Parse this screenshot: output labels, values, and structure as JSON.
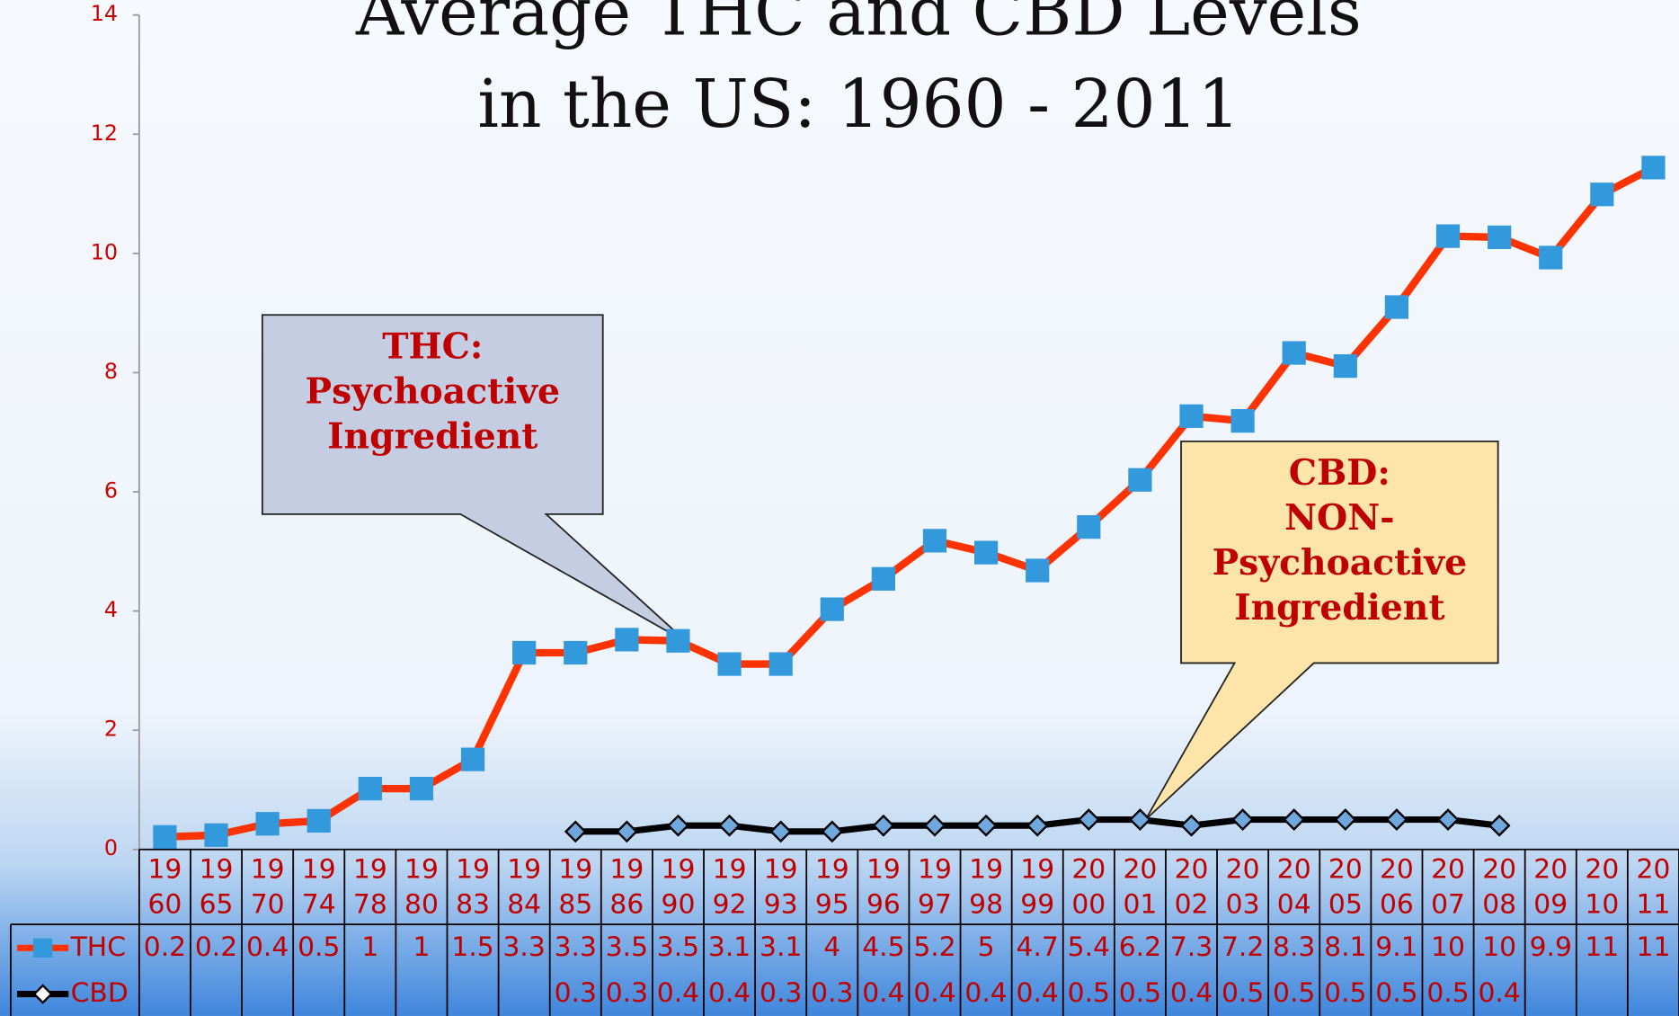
{
  "chart_data": {
    "type": "line",
    "title": [
      "Average THC and CBD Levels",
      "in the US: 1960 - 2011"
    ],
    "annotations": [
      {
        "lines": [
          "THC:",
          "Psychoactive",
          "Ingredient"
        ]
      },
      {
        "lines": [
          "CBD:",
          "NON-",
          "Psychoactive",
          "Ingredient"
        ]
      }
    ],
    "categories": [
      "1960",
      "1965",
      "1970",
      "1974",
      "1978",
      "1980",
      "1983",
      "1984",
      "1985",
      "1986",
      "1990",
      "1992",
      "1993",
      "1995",
      "1996",
      "1997",
      "1998",
      "1999",
      "2000",
      "2001",
      "2002",
      "2003",
      "2004",
      "2005",
      "2006",
      "2007",
      "2008",
      "2009",
      "2010",
      "2011"
    ],
    "series": [
      {
        "name": "THC",
        "color": "#ff3300",
        "marker_color": "#3399dd",
        "marker": "square",
        "values": [
          0.21,
          0.24,
          0.43,
          0.48,
          1.02,
          1.02,
          1.51,
          3.3,
          3.3,
          3.52,
          3.5,
          3.11,
          3.11,
          4.03,
          4.54,
          5.18,
          4.98,
          4.68,
          5.41,
          6.2,
          7.27,
          7.19,
          8.33,
          8.11,
          9.1,
          10.29,
          10.27,
          9.93,
          10.99,
          11.44
        ],
        "value_labels": [
          "0.2",
          "0.2",
          "0.4",
          "0.5",
          "1",
          "1",
          "1.5",
          "3.3",
          "3.3",
          "3.5",
          "3.5",
          "3.1",
          "3.1",
          "4",
          "4.5",
          "5.2",
          "5",
          "4.7",
          "5.4",
          "6.2",
          "7.3",
          "7.2",
          "8.3",
          "8.1",
          "9.1",
          "10",
          "10",
          "9.9",
          "11",
          "11"
        ]
      },
      {
        "name": "CBD",
        "color": "#000000",
        "marker_color": "#6fa8dc",
        "marker": "diamond",
        "values": [
          null,
          null,
          null,
          null,
          null,
          null,
          null,
          null,
          0.3,
          0.3,
          0.4,
          0.4,
          0.3,
          0.3,
          0.4,
          0.4,
          0.4,
          0.4,
          0.5,
          0.5,
          0.4,
          0.5,
          0.5,
          0.5,
          0.5,
          0.5,
          0.4,
          null,
          null,
          null
        ]
      }
    ],
    "ylim": [
      0,
      14
    ],
    "yticks": [
      0,
      2,
      4,
      6,
      8,
      10,
      12,
      14
    ],
    "grid": false,
    "data_table": true
  }
}
